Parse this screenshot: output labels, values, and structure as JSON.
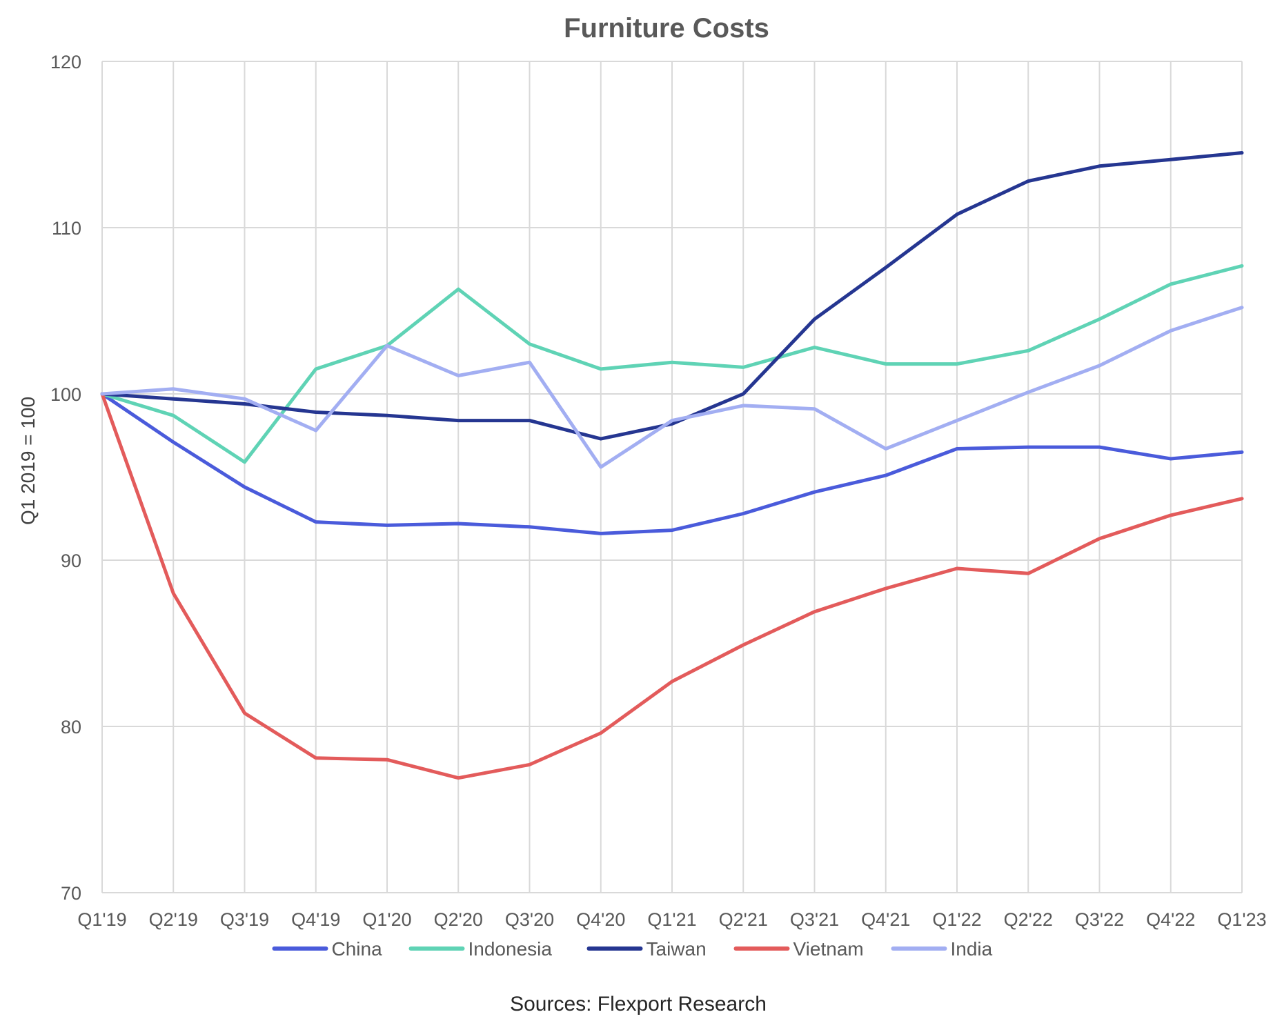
{
  "chart_data": {
    "type": "line",
    "title": "Furniture Costs",
    "xlabel": "",
    "ylabel": "Q1 2019 = 100",
    "ylim": [
      70,
      120
    ],
    "yticks": [
      70,
      80,
      90,
      100,
      110,
      120
    ],
    "grid": true,
    "legend_position": "bottom",
    "categories": [
      "Q1'19",
      "Q2'19",
      "Q3'19",
      "Q4'19",
      "Q1'20",
      "Q2'20",
      "Q3'20",
      "Q4'20",
      "Q1'21",
      "Q2'21",
      "Q3'21",
      "Q4'21",
      "Q1'22",
      "Q2'22",
      "Q3'22",
      "Q4'22",
      "Q1'23"
    ],
    "series": [
      {
        "name": "China",
        "color": "#4a5bdb",
        "values": [
          100,
          97.1,
          94.4,
          92.3,
          92.1,
          92.2,
          92.0,
          91.6,
          91.8,
          92.8,
          94.1,
          95.1,
          96.7,
          96.8,
          96.8,
          96.1,
          96.5
        ]
      },
      {
        "name": "Indonesia",
        "color": "#5fd3b5",
        "values": [
          100,
          98.7,
          95.9,
          101.5,
          102.9,
          106.3,
          103.0,
          101.5,
          101.9,
          101.6,
          102.8,
          101.8,
          101.8,
          102.6,
          104.5,
          106.6,
          107.7
        ]
      },
      {
        "name": "Taiwan",
        "color": "#253691",
        "values": [
          100,
          99.7,
          99.4,
          98.9,
          98.7,
          98.4,
          98.4,
          97.3,
          98.2,
          100.0,
          104.5,
          107.6,
          110.8,
          112.8,
          113.7,
          114.1,
          114.5
        ]
      },
      {
        "name": "Vietnam",
        "color": "#e35b5b",
        "values": [
          100,
          88.0,
          80.8,
          78.1,
          78.0,
          76.9,
          77.7,
          79.6,
          82.7,
          84.9,
          86.9,
          88.3,
          89.5,
          89.2,
          91.3,
          92.7,
          93.7
        ]
      },
      {
        "name": "India",
        "color": "#a2aef2",
        "values": [
          100,
          100.3,
          99.7,
          97.8,
          102.9,
          101.1,
          101.9,
          95.6,
          98.4,
          99.3,
          99.1,
          96.7,
          98.4,
          100.1,
          101.7,
          103.8,
          105.2
        ]
      }
    ],
    "source": "Sources: Flexport Research"
  }
}
